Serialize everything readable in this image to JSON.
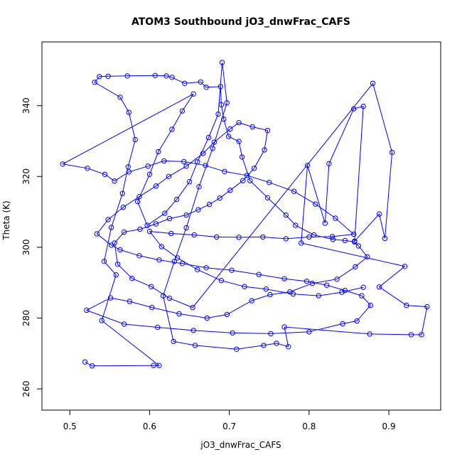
{
  "chart_data": {
    "type": "line",
    "title": "ATOM3 Southbound jO3_dnwFrac_CAFS",
    "xlabel": "jO3_dnwFrac_CAFS",
    "ylabel": "Theta (K)",
    "xlim": [
      0.465,
      0.965
    ],
    "ylim": [
      254,
      358
    ],
    "x_ticks": [
      0.5,
      0.6,
      0.7,
      0.8,
      0.9
    ],
    "x_tick_labels": [
      "0.5",
      "0.6",
      "0.7",
      "0.8",
      "0.9"
    ],
    "y_ticks": [
      260,
      280,
      300,
      320,
      340
    ],
    "y_tick_labels": [
      "260",
      "280",
      "300",
      "320",
      "340"
    ],
    "grid": false,
    "legend": "none",
    "colors": {
      "series": "#0000ff",
      "axes": "#000000"
    },
    "series": [
      {
        "marker": "open-circle",
        "points": [
          [
            0.519,
            267.6
          ],
          [
            0.528,
            266.5
          ],
          [
            0.605,
            266.6
          ],
          [
            0.612,
            266.6
          ],
          [
            0.54,
            279.3
          ],
          [
            0.558,
            292.2
          ],
          [
            0.543,
            296.0
          ],
          [
            0.552,
            305.6
          ],
          [
            0.566,
            315.2
          ],
          [
            0.573,
            322.7
          ],
          [
            0.582,
            330.4
          ],
          [
            0.574,
            338.1
          ],
          [
            0.563,
            342.4
          ],
          [
            0.531,
            346.6
          ],
          [
            0.537,
            348.2
          ],
          [
            0.548,
            348.3
          ],
          [
            0.572,
            348.4
          ],
          [
            0.607,
            348.5
          ],
          [
            0.621,
            348.4
          ],
          [
            0.628,
            348.0
          ],
          [
            0.644,
            346.3
          ],
          [
            0.664,
            346.7
          ],
          [
            0.671,
            345.2
          ],
          [
            0.689,
            345.4
          ],
          [
            0.69,
            340.3
          ],
          [
            0.693,
            336.2
          ],
          [
            0.699,
            331.3
          ],
          [
            0.712,
            329.9
          ],
          [
            0.716,
            325.5
          ],
          [
            0.726,
            318.8
          ],
          [
            0.748,
            314.0
          ],
          [
            0.771,
            309.1
          ],
          [
            0.783,
            306.2
          ],
          [
            0.806,
            303.5
          ],
          [
            0.83,
            302.2
          ],
          [
            0.845,
            301.9
          ],
          [
            0.857,
            301.5
          ],
          [
            0.862,
            300.4
          ],
          [
            0.873,
            297.3
          ],
          [
            0.858,
            294.5
          ],
          [
            0.835,
            291.0
          ],
          [
            0.804,
            289.8
          ],
          [
            0.776,
            287.4
          ],
          [
            0.751,
            286.6
          ],
          [
            0.728,
            284.9
          ],
          [
            0.697,
            281.0
          ],
          [
            0.672,
            280.0
          ],
          [
            0.637,
            281.2
          ],
          [
            0.603,
            283.0
          ],
          [
            0.575,
            284.7
          ],
          [
            0.551,
            285.7
          ],
          [
            0.521,
            282.2
          ],
          [
            0.568,
            278.3
          ],
          [
            0.61,
            277.4
          ],
          [
            0.655,
            276.5
          ],
          [
            0.704,
            275.8
          ],
          [
            0.752,
            275.6
          ],
          [
            0.8,
            276.1
          ],
          [
            0.842,
            278.4
          ],
          [
            0.86,
            279.2
          ],
          [
            0.877,
            283.6
          ],
          [
            0.866,
            286.3
          ],
          [
            0.845,
            287.8
          ],
          [
            0.822,
            289.3
          ],
          [
            0.797,
            290.4
          ],
          [
            0.769,
            291.1
          ],
          [
            0.737,
            292.3
          ],
          [
            0.703,
            293.5
          ],
          [
            0.671,
            294.2
          ],
          [
            0.641,
            295.4
          ],
          [
            0.612,
            296.4
          ],
          [
            0.587,
            297.6
          ],
          [
            0.563,
            299.3
          ],
          [
            0.552,
            300.6
          ],
          [
            0.534,
            303.8
          ],
          [
            0.548,
            307.8
          ],
          [
            0.567,
            311.3
          ],
          [
            0.587,
            314.3
          ],
          [
            0.608,
            317.3
          ],
          [
            0.624,
            320.0
          ],
          [
            0.646,
            322.9
          ],
          [
            0.667,
            326.5
          ],
          [
            0.681,
            329.7
          ],
          [
            0.701,
            333.4
          ],
          [
            0.712,
            335.2
          ],
          [
            0.729,
            334.0
          ],
          [
            0.748,
            333.0
          ],
          [
            0.744,
            327.5
          ],
          [
            0.731,
            322.3
          ],
          [
            0.717,
            318.8
          ],
          [
            0.701,
            316.1
          ],
          [
            0.688,
            313.9
          ],
          [
            0.675,
            312.1
          ],
          [
            0.661,
            310.6
          ],
          [
            0.646,
            309.1
          ],
          [
            0.625,
            308.1
          ],
          [
            0.608,
            306.6
          ],
          [
            0.588,
            305.1
          ],
          [
            0.568,
            304.3
          ],
          [
            0.556,
            301.2
          ],
          [
            0.56,
            295.2
          ],
          [
            0.578,
            291.2
          ],
          [
            0.602,
            288.9
          ],
          [
            0.625,
            285.6
          ],
          [
            0.654,
            283.0
          ],
          [
            0.88,
            346.3
          ],
          [
            0.904,
            326.8
          ],
          [
            0.895,
            302.5
          ],
          [
            0.888,
            309.4
          ],
          [
            0.857,
            301.7
          ],
          [
            0.868,
            339.8
          ],
          [
            0.856,
            339.1
          ],
          [
            0.825,
            323.6
          ],
          [
            0.82,
            306.8
          ],
          [
            0.798,
            323.1
          ],
          [
            0.79,
            301.2
          ],
          [
            0.92,
            294.6
          ],
          [
            0.888,
            288.8
          ],
          [
            0.922,
            283.6
          ],
          [
            0.948,
            283.2
          ],
          [
            0.941,
            275.3
          ],
          [
            0.928,
            275.3
          ],
          [
            0.876,
            275.5
          ],
          [
            0.769,
            277.5
          ],
          [
            0.774,
            271.9
          ],
          [
            0.759,
            272.9
          ],
          [
            0.743,
            272.3
          ],
          [
            0.709,
            271.2
          ],
          [
            0.657,
            272.3
          ],
          [
            0.63,
            273.4
          ],
          [
            0.617,
            286.3
          ],
          [
            0.631,
            296.0
          ],
          [
            0.646,
            305.5
          ],
          [
            0.662,
            317.1
          ],
          [
            0.679,
            327.9
          ],
          [
            0.697,
            340.8
          ],
          [
            0.691,
            352.2
          ],
          [
            0.686,
            337.6
          ],
          [
            0.674,
            331.0
          ],
          [
            0.66,
            324.1
          ],
          [
            0.65,
            318.5
          ],
          [
            0.634,
            313.5
          ],
          [
            0.619,
            309.6
          ],
          [
            0.597,
            306.2
          ],
          [
            0.585,
            312.9
          ],
          [
            0.6,
            320.6
          ],
          [
            0.611,
            327.0
          ],
          [
            0.628,
            333.3
          ],
          [
            0.641,
            338.5
          ],
          [
            0.655,
            343.3
          ],
          [
            0.491,
            323.5
          ],
          [
            0.522,
            322.3
          ],
          [
            0.544,
            320.6
          ],
          [
            0.556,
            318.7
          ],
          [
            0.574,
            321.3
          ],
          [
            0.598,
            322.9
          ],
          [
            0.618,
            324.4
          ],
          [
            0.643,
            324.2
          ],
          [
            0.67,
            323.1
          ],
          [
            0.694,
            321.4
          ],
          [
            0.722,
            320.3
          ],
          [
            0.75,
            318.3
          ],
          [
            0.781,
            315.8
          ],
          [
            0.808,
            312.2
          ],
          [
            0.833,
            308.2
          ],
          [
            0.856,
            303.7
          ],
          [
            0.829,
            303.0
          ],
          [
            0.8,
            302.9
          ],
          [
            0.771,
            302.4
          ],
          [
            0.742,
            302.9
          ],
          [
            0.712,
            302.8
          ],
          [
            0.684,
            302.9
          ],
          [
            0.656,
            303.5
          ],
          [
            0.627,
            303.9
          ],
          [
            0.6,
            304.5
          ],
          [
            0.615,
            300.2
          ],
          [
            0.635,
            297.0
          ],
          [
            0.66,
            293.7
          ],
          [
            0.69,
            290.6
          ],
          [
            0.719,
            288.9
          ],
          [
            0.746,
            288.2
          ],
          [
            0.78,
            286.8
          ],
          [
            0.812,
            286.3
          ],
          [
            0.841,
            287.3
          ],
          [
            0.868,
            288.7
          ]
        ]
      }
    ]
  }
}
